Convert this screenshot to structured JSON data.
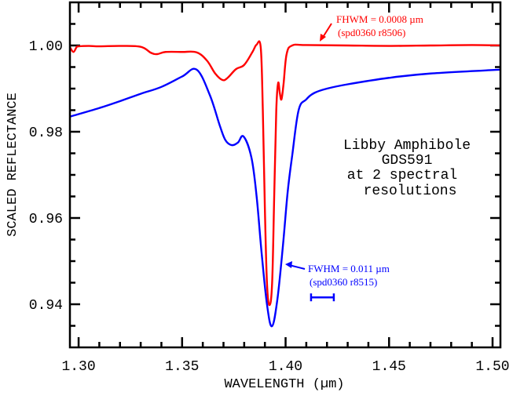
{
  "chart_data": {
    "type": "line",
    "title": "",
    "xlabel": "WAVELENGTH (µm)",
    "ylabel": "SCALED REFLECTANCE",
    "xlim": [
      1.2958,
      1.5038
    ],
    "ylim": [
      0.93,
      1.01
    ],
    "xticks": [
      1.3,
      1.35,
      1.4,
      1.45,
      1.5
    ],
    "xtick_labels": [
      "1.30",
      "1.35",
      "1.40",
      "1.45",
      "1.50"
    ],
    "yticks": [
      0.94,
      0.96,
      0.98,
      1.0
    ],
    "ytick_labels": [
      "0.94",
      "0.96",
      "0.98",
      "1.00"
    ],
    "x_minor_step": 0.01,
    "y_minor_step": 0.005,
    "grid": false,
    "colors": {
      "red": "#ff0000",
      "blue": "#0000ff",
      "axis": "#000000"
    },
    "series": [
      {
        "name": "FHWM = 0.0008 µm (spd0360 r8506)",
        "color": "#ff0000",
        "x": [
          1.2958,
          1.2975,
          1.299,
          1.3,
          1.305,
          1.31,
          1.32,
          1.33,
          1.335,
          1.338,
          1.342,
          1.35,
          1.357,
          1.362,
          1.366,
          1.3695,
          1.372,
          1.376,
          1.38,
          1.384,
          1.386,
          1.388,
          1.389,
          1.39,
          1.391,
          1.3922,
          1.3935,
          1.3945,
          1.3955,
          1.3964,
          1.3972,
          1.398,
          1.399,
          1.4005,
          1.4032,
          1.41,
          1.43,
          1.45,
          1.47,
          1.49,
          1.5038
        ],
        "y": [
          0.9996,
          0.9985,
          0.9996,
          0.9998,
          0.9999,
          0.9998,
          0.9999,
          0.9997,
          0.9983,
          0.998,
          0.9985,
          0.9985,
          0.9984,
          0.9965,
          0.9935,
          0.992,
          0.9925,
          0.9945,
          0.9955,
          0.9985,
          1.0002,
          0.9995,
          0.985,
          0.962,
          0.945,
          0.9398,
          0.945,
          0.965,
          0.985,
          0.9913,
          0.989,
          0.9875,
          0.991,
          0.998,
          1.0,
          1.0001,
          1.0,
          0.9999,
          1.0,
          1.0001,
          1.0
        ]
      },
      {
        "name": "FWHM = 0.011 µm (spd0360 r8515)",
        "color": "#0000ff",
        "x": [
          1.2958,
          1.31,
          1.32,
          1.33,
          1.34,
          1.35,
          1.357,
          1.3634,
          1.3683,
          1.371,
          1.374,
          1.377,
          1.3797,
          1.3835,
          1.386,
          1.3884,
          1.391,
          1.3934,
          1.396,
          1.3987,
          1.401,
          1.4032,
          1.4063,
          1.41,
          1.4139,
          1.42,
          1.43,
          1.45,
          1.47,
          1.5038
        ],
        "y": [
          0.9835,
          0.9855,
          0.9871,
          0.9888,
          0.9904,
          0.9928,
          0.9944,
          0.9885,
          0.9813,
          0.978,
          0.9769,
          0.9775,
          0.9789,
          0.974,
          0.965,
          0.952,
          0.94,
          0.9349,
          0.941,
          0.9535,
          0.966,
          0.9745,
          0.985,
          0.9875,
          0.989,
          0.99,
          0.991,
          0.9925,
          0.9935,
          0.9944
        ]
      }
    ],
    "annotations": {
      "red_line1": "FHWM = 0.0008 µm",
      "red_line2": "(spd0360 r8506)",
      "blue_line1": "FWHM = 0.011 µm",
      "blue_line2": "(spd0360 r8515)",
      "resolution_bar": {
        "x_start": 1.4123,
        "x_end": 1.4233,
        "y": 0.9416
      },
      "title_lines": [
        "Libby Amphibole",
        "GDS591",
        "at 2 spectral",
        "resolutions"
      ]
    }
  }
}
